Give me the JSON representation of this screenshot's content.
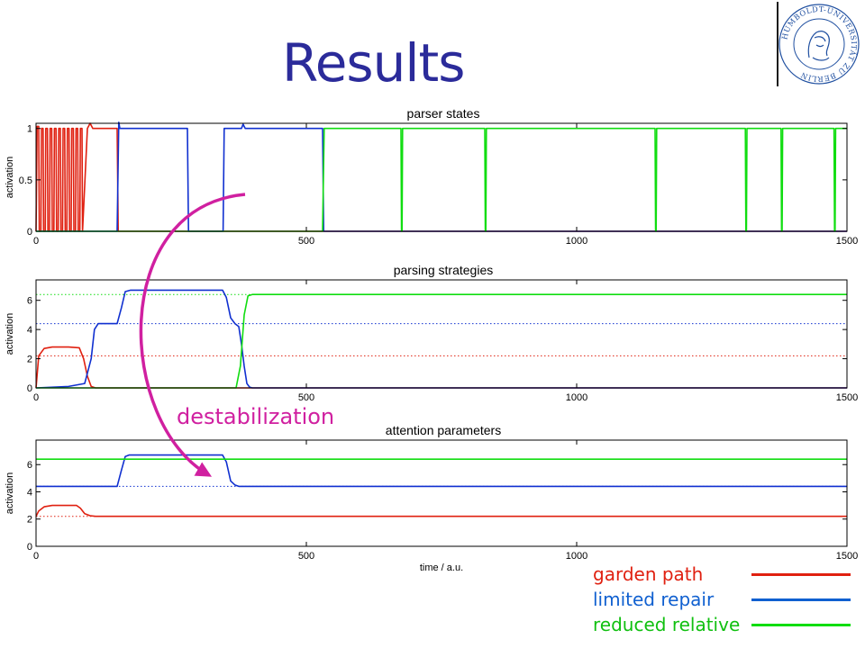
{
  "page": {
    "title": "Results",
    "seal_text": "HUMBOLDT-UNIVERSITÄT ZU BERLIN",
    "annotation": "destabilization",
    "annotation_color": "#d020a0"
  },
  "colors": {
    "garden_path": "#e02010",
    "limited_repair": "#1030d0",
    "reduced_relative": "#10dd10",
    "title": "#2b2b9a"
  },
  "legend": [
    {
      "label": "garden path",
      "color": "#e02010"
    },
    {
      "label": "limited repair",
      "color": "#1030d0"
    },
    {
      "label": "reduced relative",
      "color": "#10dd10"
    }
  ],
  "chart_data": [
    {
      "type": "line",
      "title": "parser states",
      "xlabel": "",
      "ylabel": "activation",
      "xlim": [
        0,
        1500
      ],
      "ylim": [
        0,
        1.05
      ],
      "xticks": [
        0,
        500,
        1000,
        1500
      ],
      "yticks": [
        0,
        0.5,
        1
      ],
      "xtick_labels": [
        "0",
        "500",
        "1000",
        "1500"
      ],
      "ytick_labels": [
        "0",
        "0.5",
        "1"
      ],
      "series": [
        {
          "key": "garden_path",
          "color": "#e02010",
          "x": [
            0,
            2,
            5,
            6,
            9,
            10,
            13,
            14,
            17,
            18,
            21,
            22,
            25,
            26,
            29,
            30,
            33,
            34,
            37,
            38,
            41,
            42,
            45,
            46,
            49,
            50,
            53,
            54,
            57,
            58,
            61,
            62,
            65,
            66,
            69,
            70,
            73,
            74,
            77,
            78,
            81,
            82,
            85,
            86,
            95,
            100,
            105,
            150,
            152,
            155,
            1500
          ],
          "y": [
            0,
            1.02,
            1.02,
            0,
            0,
            1,
            1,
            0,
            0,
            1,
            1,
            0,
            0,
            1,
            1,
            0,
            0,
            1,
            1,
            0,
            0,
            1,
            1,
            0,
            0,
            1,
            1,
            0,
            0,
            1,
            1,
            0,
            0,
            1,
            1,
            0,
            0,
            1,
            1,
            0,
            0,
            1,
            1,
            0,
            1,
            1.05,
            1,
            1,
            0,
            0,
            0
          ]
        },
        {
          "key": "limited_repair",
          "color": "#1030d0",
          "x": [
            0,
            150,
            153,
            155,
            158,
            280,
            282,
            286,
            346,
            348,
            352,
            380,
            383,
            387,
            390,
            530,
            532,
            536,
            1500
          ],
          "y": [
            0,
            0,
            1.06,
            1,
            1,
            1,
            0,
            0,
            0,
            1,
            1,
            1,
            1.04,
            1,
            1,
            1,
            0,
            0,
            0
          ]
        },
        {
          "key": "reduced_relative",
          "color": "#10dd10",
          "x": [
            0,
            530,
            533,
            536,
            675,
            676,
            677,
            678,
            830,
            831,
            832,
            833,
            1145,
            1146,
            1147,
            1148,
            1312,
            1313,
            1314,
            1315,
            1378,
            1379,
            1380,
            1381,
            1476,
            1477,
            1478,
            1479,
            1500
          ],
          "y": [
            0,
            0,
            1,
            1,
            1,
            0,
            0,
            1,
            1,
            0,
            0,
            1,
            1,
            0,
            0,
            1,
            1,
            0,
            0,
            1,
            1,
            0,
            0,
            1,
            1,
            0,
            0,
            1,
            1
          ]
        }
      ]
    },
    {
      "type": "line",
      "title": "parsing strategies",
      "xlabel": "",
      "ylabel": "activation",
      "xlim": [
        0,
        1500
      ],
      "ylim": [
        0,
        7.4
      ],
      "xticks": [
        0,
        500,
        1000,
        1500
      ],
      "yticks": [
        0,
        2,
        4,
        6
      ],
      "xtick_labels": [
        "0",
        "500",
        "1000",
        "1500"
      ],
      "ytick_labels": [
        "0",
        "2",
        "4",
        "6"
      ],
      "reference_lines": [
        {
          "key": "garden_path",
          "y": 2.2
        },
        {
          "key": "limited_repair",
          "y": 4.4
        },
        {
          "key": "reduced_relative",
          "y": 6.4
        }
      ],
      "series": [
        {
          "key": "garden_path",
          "color": "#e02010",
          "x": [
            0,
            5,
            15,
            30,
            60,
            80,
            88,
            95,
            102,
            110,
            1500
          ],
          "y": [
            0,
            2.2,
            2.7,
            2.8,
            2.8,
            2.75,
            2.0,
            0.8,
            0.1,
            0,
            0
          ]
        },
        {
          "key": "limited_repair",
          "color": "#1030d0",
          "x": [
            0,
            60,
            90,
            102,
            108,
            115,
            150,
            158,
            165,
            175,
            345,
            352,
            360,
            368,
            375,
            380,
            385,
            390,
            395,
            400,
            1500
          ],
          "y": [
            0,
            0.1,
            0.3,
            2.0,
            4.0,
            4.4,
            4.4,
            5.5,
            6.6,
            6.7,
            6.7,
            6.2,
            4.8,
            4.4,
            4.2,
            3.0,
            1.5,
            0.3,
            0.05,
            0,
            0
          ]
        },
        {
          "key": "reduced_relative",
          "color": "#10dd10",
          "x": [
            0,
            370,
            378,
            385,
            392,
            400,
            1500
          ],
          "y": [
            0,
            0,
            1.5,
            5.0,
            6.3,
            6.4,
            6.4
          ]
        }
      ]
    },
    {
      "type": "line",
      "title": "attention parameters",
      "xlabel": "time / a.u.",
      "ylabel": "activation",
      "xlim": [
        0,
        1500
      ],
      "ylim": [
        0,
        7.8
      ],
      "xticks": [
        0,
        500,
        1000,
        1500
      ],
      "yticks": [
        0,
        2,
        4,
        6
      ],
      "xtick_labels": [
        "0",
        "500",
        "1000",
        "1500"
      ],
      "ytick_labels": [
        "0",
        "2",
        "4",
        "6"
      ],
      "reference_lines": [
        {
          "key": "garden_path",
          "y": 2.2
        },
        {
          "key": "limited_repair",
          "y": 4.4
        }
      ],
      "series": [
        {
          "key": "garden_path",
          "color": "#e02010",
          "x": [
            0,
            5,
            15,
            30,
            75,
            82,
            90,
            100,
            110,
            1500
          ],
          "y": [
            2.2,
            2.6,
            2.9,
            3.0,
            3.0,
            2.8,
            2.4,
            2.25,
            2.2,
            2.2
          ]
        },
        {
          "key": "limited_repair",
          "color": "#1030d0",
          "x": [
            0,
            150,
            158,
            165,
            172,
            345,
            352,
            360,
            368,
            375,
            1500
          ],
          "y": [
            4.4,
            4.4,
            5.6,
            6.6,
            6.7,
            6.7,
            6.2,
            4.8,
            4.5,
            4.4,
            4.4
          ]
        },
        {
          "key": "reduced_relative",
          "color": "#10dd10",
          "x": [
            0,
            1500
          ],
          "y": [
            6.4,
            6.4
          ]
        }
      ]
    }
  ]
}
